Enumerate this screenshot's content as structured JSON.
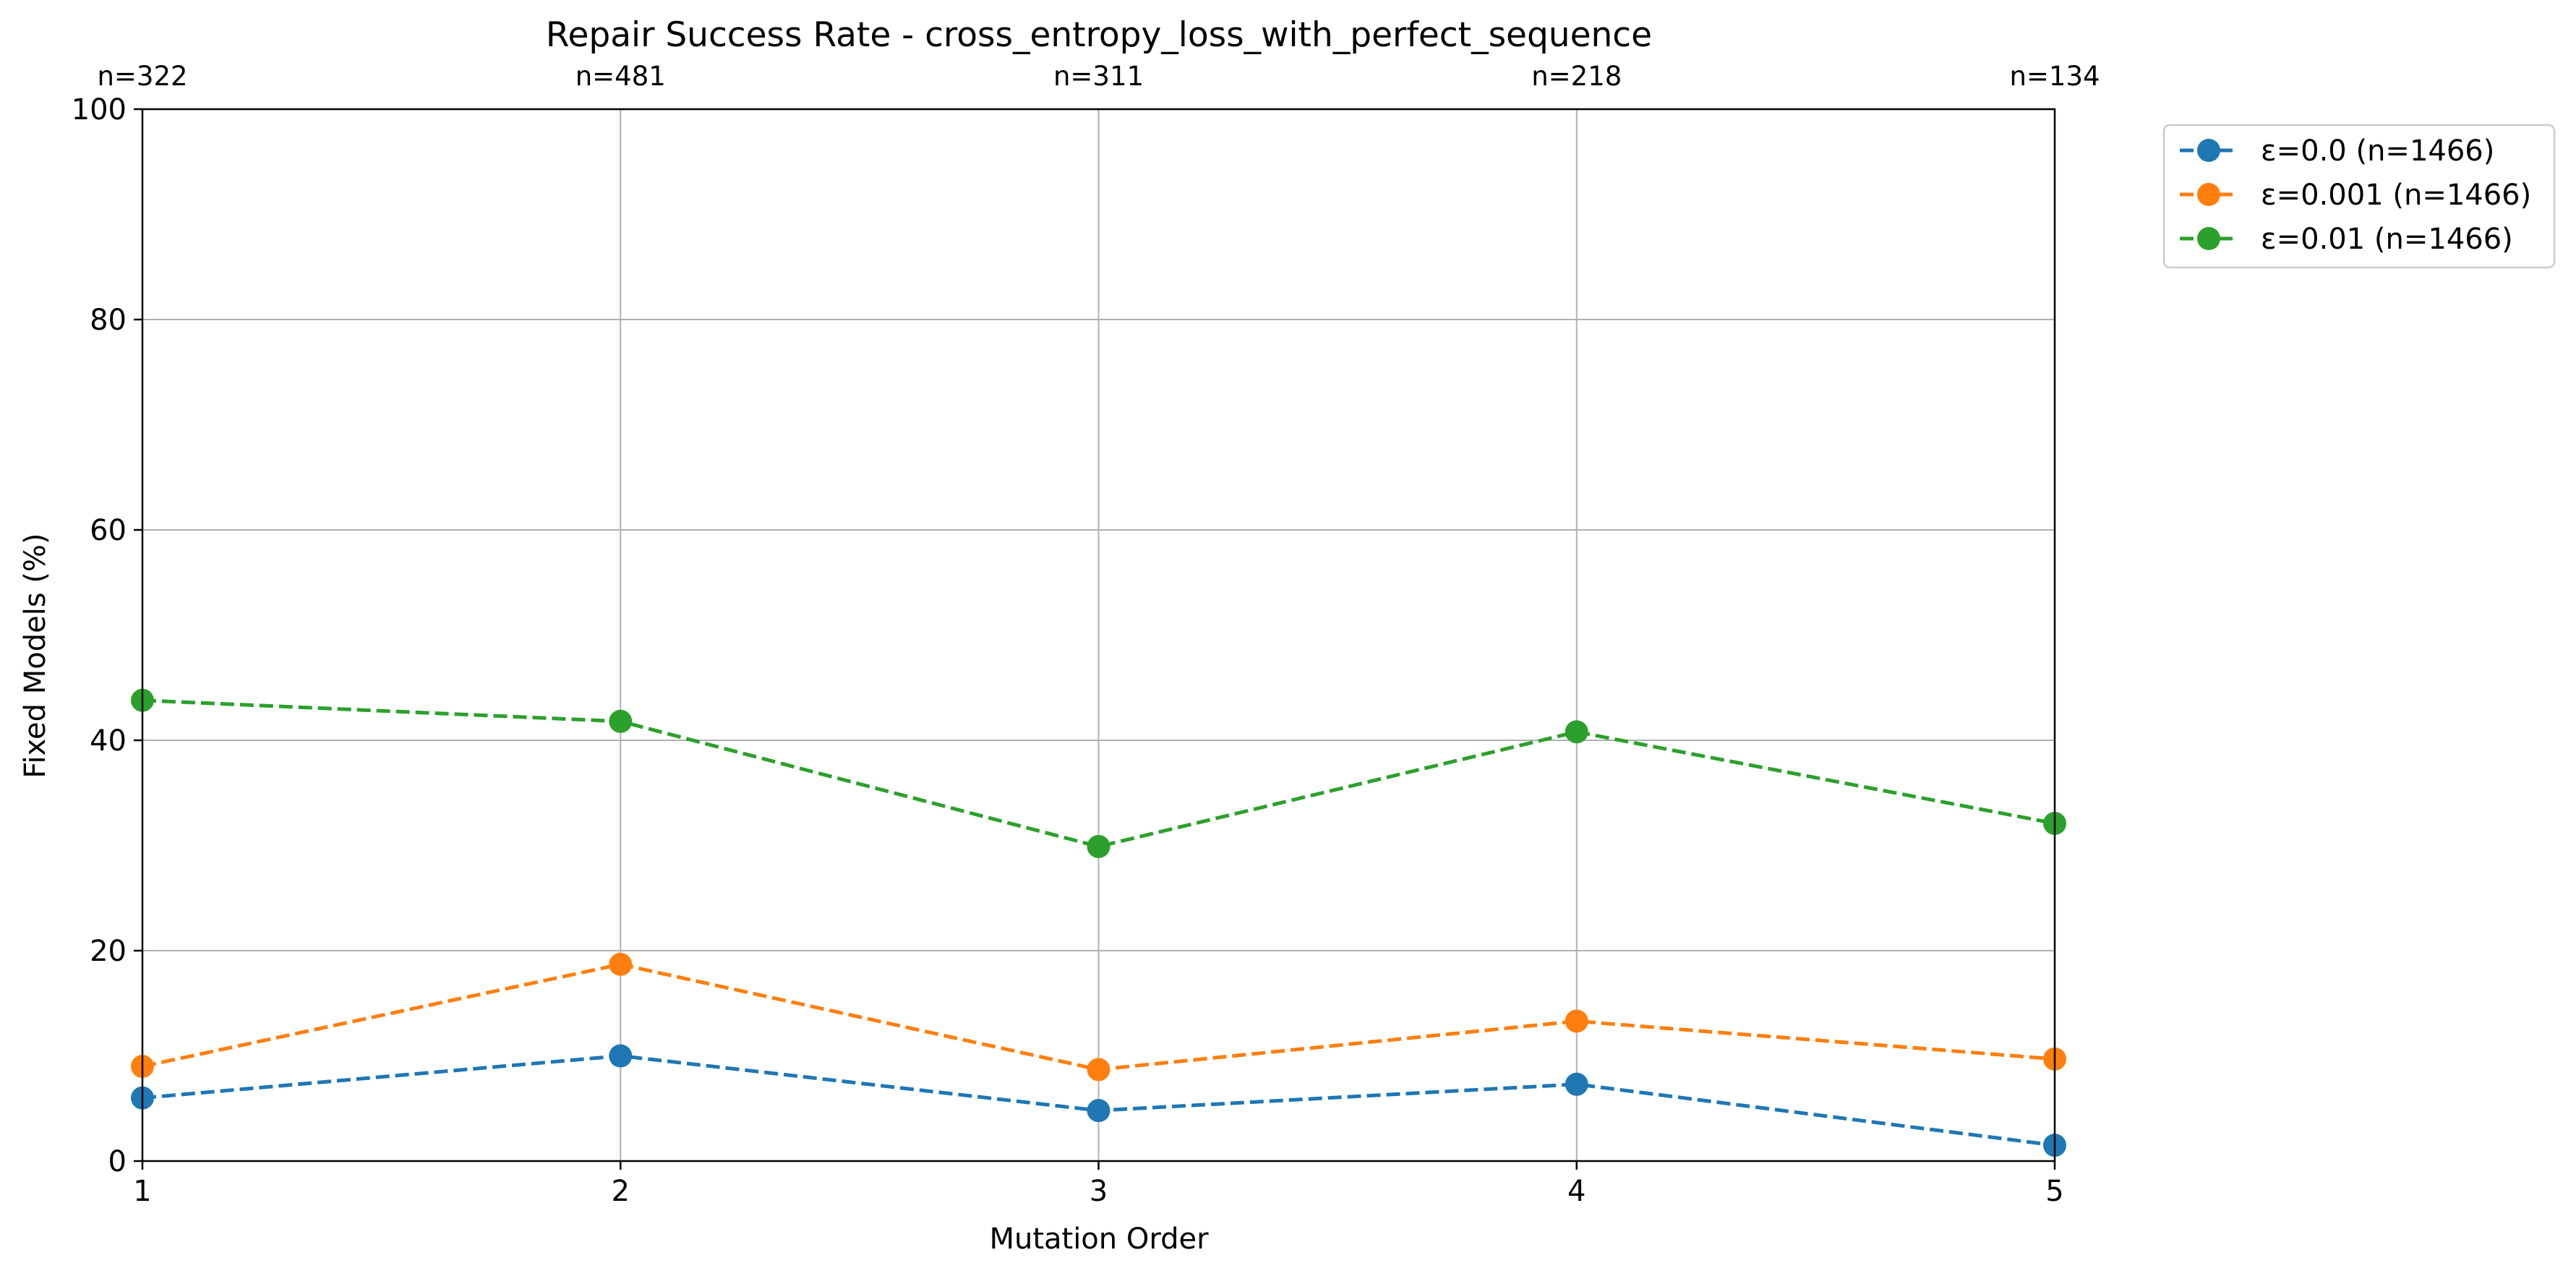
{
  "chart_data": {
    "type": "line",
    "title": "Repair Success Rate - cross_entropy_loss_with_perfect_sequence",
    "xlabel": "Mutation Order",
    "ylabel": "Fixed Models (%)",
    "x": [
      1,
      2,
      3,
      4,
      5
    ],
    "xticks": [
      "1",
      "2",
      "3",
      "4",
      "5"
    ],
    "yticks": [
      "0",
      "20",
      "40",
      "60",
      "80",
      "100"
    ],
    "xlim": [
      1,
      5
    ],
    "ylim": [
      0,
      100
    ],
    "grid": true,
    "top_counts": [
      "n=322",
      "n=481",
      "n=311",
      "n=218",
      "n=134"
    ],
    "legend_position": "outside-top-right",
    "series": [
      {
        "name": "ε=0.0 (n=1466)",
        "color": "#1f77b4",
        "linestyle": "dashed",
        "marker": "circle",
        "values": [
          6.0,
          10.0,
          4.8,
          7.3,
          1.5
        ]
      },
      {
        "name": "ε=0.001 (n=1466)",
        "color": "#ff7f0e",
        "linestyle": "dashed",
        "marker": "circle",
        "values": [
          9.0,
          18.7,
          8.7,
          13.3,
          9.7
        ]
      },
      {
        "name": "ε=0.01 (n=1466)",
        "color": "#2ca02c",
        "linestyle": "dashed",
        "marker": "circle",
        "values": [
          43.8,
          41.8,
          29.9,
          40.8,
          32.1
        ]
      }
    ]
  }
}
